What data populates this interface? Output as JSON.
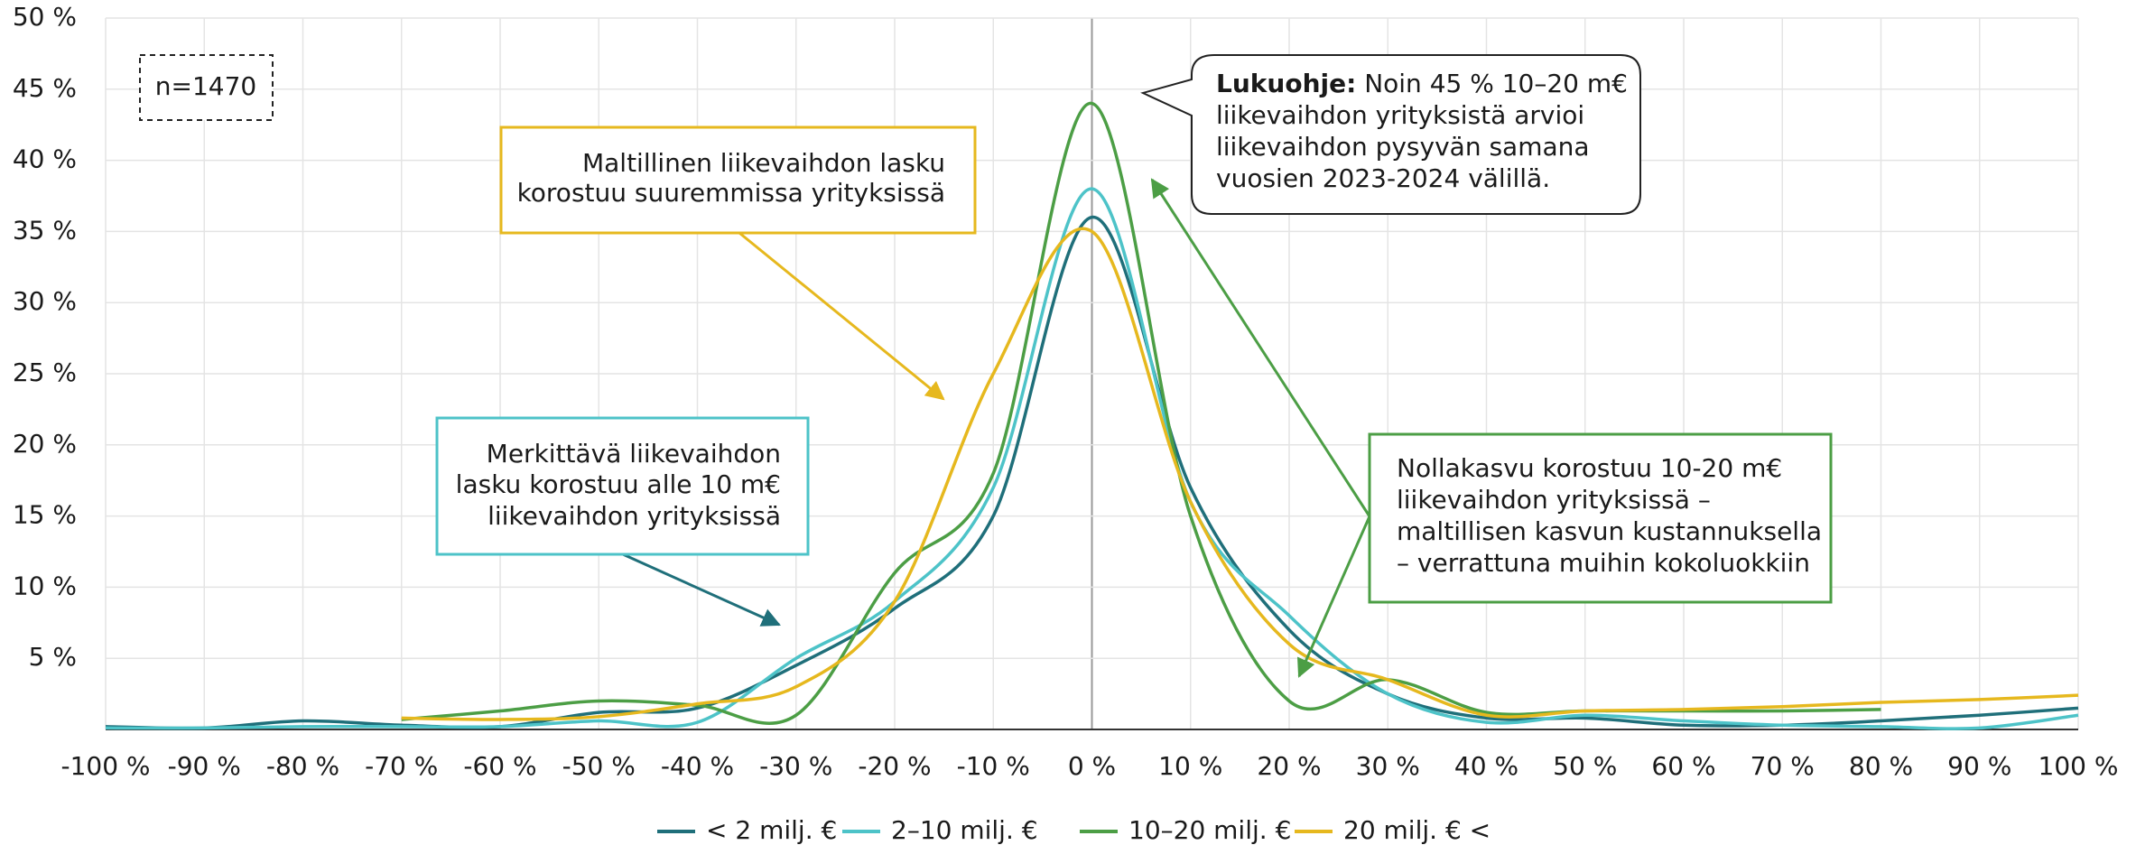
{
  "chart_data": {
    "type": "line",
    "x": [
      -100,
      -90,
      -80,
      -70,
      -60,
      -50,
      -40,
      -30,
      -20,
      -10,
      0,
      10,
      20,
      30,
      40,
      50,
      60,
      70,
      80,
      90,
      100
    ],
    "series": [
      {
        "name": "< 2 milj. €",
        "color": "#1f6f7a",
        "values": [
          0.2,
          0.1,
          0.6,
          0.3,
          0.2,
          1.2,
          1.5,
          4.5,
          8.5,
          15,
          36,
          17,
          7,
          2.5,
          0.8,
          0.8,
          0.3,
          0.3,
          0.6,
          1.0,
          1.5
        ]
      },
      {
        "name": "2–10 milj. €",
        "color": "#4dc3c8",
        "values": [
          0.1,
          0.1,
          0.2,
          0.2,
          0.2,
          0.6,
          0.5,
          5,
          9,
          17,
          38,
          16,
          8,
          2.5,
          0.5,
          1.0,
          0.6,
          0.3,
          0.2,
          0.1,
          1.0
        ]
      },
      {
        "name": "10–20 milj. €",
        "color": "#4c9e45",
        "values": [
          null,
          null,
          null,
          0.7,
          1.3,
          2,
          1.7,
          1,
          11,
          18,
          44,
          15,
          2,
          3.5,
          1.2,
          1.3,
          1.3,
          1.3,
          1.4,
          null,
          null
        ]
      },
      {
        "name": "20 milj. € <",
        "color": "#e6b81e",
        "values": [
          null,
          null,
          null,
          0.8,
          0.7,
          0.9,
          1.8,
          3,
          9,
          25,
          35,
          16,
          6,
          3.5,
          1.0,
          1.3,
          1.4,
          1.6,
          1.9,
          2.1,
          2.4
        ]
      }
    ],
    "xlim": [
      -100,
      100
    ],
    "xticks": [
      {
        "value": -100,
        "label": "-100 %"
      },
      {
        "value": -90,
        "label": "-90 %"
      },
      {
        "value": -80,
        "label": "-80 %"
      },
      {
        "value": -70,
        "label": "-70 %"
      },
      {
        "value": -60,
        "label": "-60 %"
      },
      {
        "value": -50,
        "label": "-50 %"
      },
      {
        "value": -40,
        "label": "-40 %"
      },
      {
        "value": -30,
        "label": "-30 %"
      },
      {
        "value": -20,
        "label": "-20 %"
      },
      {
        "value": -10,
        "label": "-10 %"
      },
      {
        "value": 0,
        "label": "0 %"
      },
      {
        "value": 10,
        "label": "10 %"
      },
      {
        "value": 20,
        "label": "20 %"
      },
      {
        "value": 30,
        "label": "30 %"
      },
      {
        "value": 40,
        "label": "40 %"
      },
      {
        "value": 50,
        "label": "50 %"
      },
      {
        "value": 60,
        "label": "60 %"
      },
      {
        "value": 70,
        "label": "70 %"
      },
      {
        "value": 80,
        "label": "80 %"
      },
      {
        "value": 90,
        "label": "90 %"
      },
      {
        "value": 100,
        "label": "100 %"
      }
    ],
    "ylim": [
      0,
      50
    ],
    "yticks": [
      {
        "value": 5,
        "label": "5 %"
      },
      {
        "value": 10,
        "label": "10 %"
      },
      {
        "value": 15,
        "label": "15 %"
      },
      {
        "value": 20,
        "label": "20 %"
      },
      {
        "value": 25,
        "label": "25 %"
      },
      {
        "value": 30,
        "label": "30 %"
      },
      {
        "value": 35,
        "label": "35 %"
      },
      {
        "value": 40,
        "label": "40 %"
      },
      {
        "value": 45,
        "label": "45 %"
      },
      {
        "value": 50,
        "label": "50 %"
      }
    ],
    "grid": true,
    "legend": "bottom",
    "annotations": {
      "sample": "n=1470",
      "large": [
        "Maltillinen liikevaihdon lasku",
        "korostuu suuremmissa yrityksissä"
      ],
      "small": [
        "Merkittävä liikevaihdon",
        "lasku korostuu alle 10 m€",
        "liikevaihdon yrityksissä"
      ],
      "zero": [
        "Nollakasvu korostuu 10-20 m€",
        "liikevaihdon yrityksissä –",
        "maltillisen kasvun kustannuksella",
        "–  verrattuna muihin kokoluokkiin"
      ],
      "guide": {
        "label": "Lukuohje:",
        "lines": [
          " Noin 45 % 10–20 m€",
          "liikevaihdon yrityksistä arvioi",
          "liikevaihdon pysyvän samana",
          "vuosien 2023-2024 välillä."
        ]
      }
    }
  }
}
